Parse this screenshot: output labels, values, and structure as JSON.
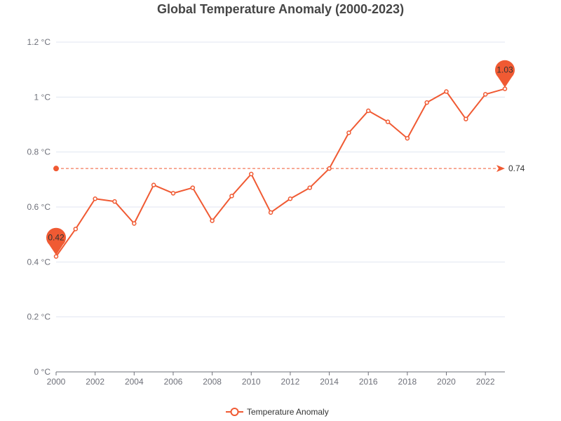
{
  "chart_data": {
    "type": "line",
    "title": "Global Temperature Anomaly (2000-2023)",
    "xlabel": "",
    "ylabel": "",
    "unit": "°C",
    "x": [
      2000,
      2001,
      2002,
      2003,
      2004,
      2005,
      2006,
      2007,
      2008,
      2009,
      2010,
      2011,
      2012,
      2013,
      2014,
      2015,
      2016,
      2017,
      2018,
      2019,
      2020,
      2021,
      2022,
      2023
    ],
    "xticks": [
      "2000",
      "2002",
      "2004",
      "2006",
      "2008",
      "2010",
      "2012",
      "2014",
      "2016",
      "2018",
      "2020",
      "2022"
    ],
    "xlim": [
      2000,
      2023
    ],
    "yticks": [
      "0 °C",
      "0.2 °C",
      "0.4 °C",
      "0.6 °C",
      "0.8 °C",
      "1 °C",
      "1.2 °C"
    ],
    "ylim": [
      0,
      1.2
    ],
    "grid": true,
    "legend_position": "bottom-center",
    "series": [
      {
        "name": "Temperature Anomaly",
        "color": "#f05a33",
        "values": [
          0.42,
          0.52,
          0.63,
          0.62,
          0.54,
          0.68,
          0.65,
          0.67,
          0.55,
          0.64,
          0.72,
          0.58,
          0.63,
          0.67,
          0.74,
          0.87,
          0.95,
          0.91,
          0.85,
          0.98,
          1.02,
          0.92,
          1.01,
          1.03
        ]
      }
    ],
    "mark_points": [
      {
        "year": 2000,
        "value": 0.42,
        "label": "0.42"
      },
      {
        "year": 2023,
        "value": 1.03,
        "label": "1.03"
      }
    ],
    "mark_line": {
      "value": 0.74,
      "label": "0.74"
    }
  }
}
